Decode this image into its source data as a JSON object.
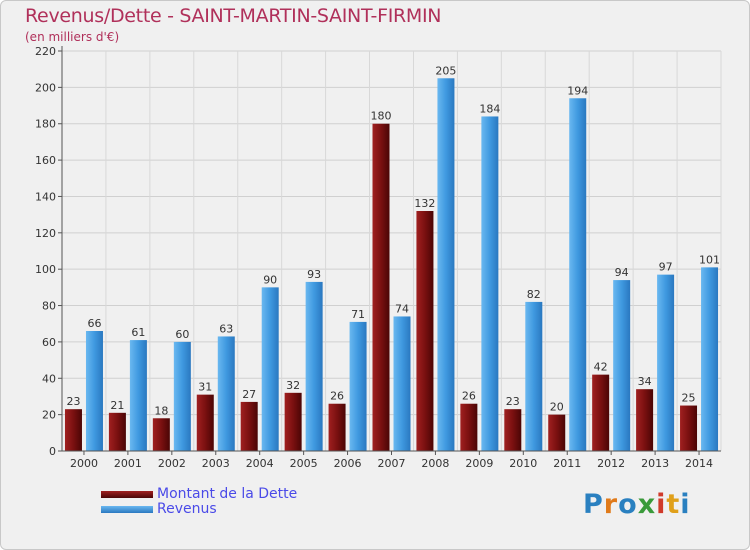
{
  "chart_data": {
    "type": "bar",
    "title": "Revenus/Dette - SAINT-MARTIN-SAINT-FIRMIN",
    "subtitle": "(en milliers d'€)",
    "categories": [
      "2000",
      "2001",
      "2002",
      "2003",
      "2004",
      "2005",
      "2006",
      "2007",
      "2008",
      "2009",
      "2010",
      "2011",
      "2012",
      "2013",
      "2014"
    ],
    "series": [
      {
        "name": "Montant de la Dette",
        "color": "#7a1010",
        "values": [
          23,
          21,
          18,
          31,
          27,
          32,
          26,
          180,
          132,
          26,
          23,
          20,
          42,
          34,
          25
        ]
      },
      {
        "name": "Revenus",
        "color": "#3f99e0",
        "values": [
          66,
          61,
          60,
          63,
          90,
          93,
          71,
          74,
          205,
          184,
          82,
          194,
          94,
          97,
          101
        ]
      }
    ],
    "ylim": [
      0,
      220
    ],
    "yticks": [
      0,
      20,
      40,
      60,
      80,
      100,
      120,
      140,
      160,
      180,
      200,
      220
    ],
    "grid": true,
    "legend": "bottom-left"
  },
  "logo": {
    "text": "Proxiti",
    "letters": [
      "P",
      "r",
      "o",
      "x",
      "i",
      "t",
      "i"
    ],
    "colors": [
      "#2a80c0",
      "#e07a1a",
      "#2a80c0",
      "#3a9a3a",
      "#d03a2a",
      "#e0a01a",
      "#2a80c0"
    ]
  }
}
